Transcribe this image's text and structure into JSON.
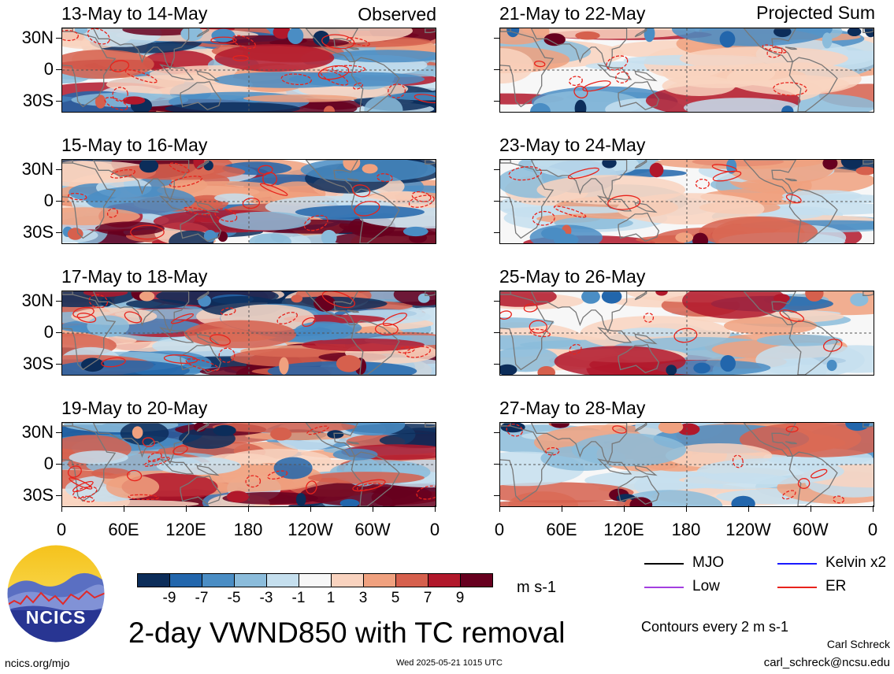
{
  "header": {
    "observed": "Observed",
    "projected": "Projected Sum"
  },
  "panels": [
    {
      "title": "13-May to 14-May",
      "seed": 1,
      "kind": "observed"
    },
    {
      "title": "15-May to 16-May",
      "seed": 2,
      "kind": "observed"
    },
    {
      "title": "17-May to 18-May",
      "seed": 3,
      "kind": "observed"
    },
    {
      "title": "19-May to 20-May",
      "seed": 4,
      "kind": "observed"
    },
    {
      "title": "21-May to 22-May",
      "seed": 5,
      "kind": "projected"
    },
    {
      "title": "23-May to 24-May",
      "seed": 6,
      "kind": "projected"
    },
    {
      "title": "25-May to 26-May",
      "seed": 7,
      "kind": "projected"
    },
    {
      "title": "27-May to 28-May",
      "seed": 8,
      "kind": "projected"
    }
  ],
  "axes": {
    "lat_labels": [
      "30N",
      "0",
      "30S"
    ],
    "lon_labels": [
      "0",
      "60E",
      "120E",
      "180",
      "120W",
      "60W",
      "0"
    ]
  },
  "colorbar": {
    "labels": [
      "-9",
      "-7",
      "-5",
      "-3",
      "-1",
      "1",
      "3",
      "5",
      "7",
      "9"
    ],
    "colors": [
      "#0c2d5a",
      "#2266ac",
      "#4a8dc4",
      "#8bbcdb",
      "#c5dfee",
      "#f7f7f7",
      "#f9d3bf",
      "#f0a17f",
      "#d6604d",
      "#b1182b",
      "#67001f"
    ],
    "units": "m s-1"
  },
  "legend": {
    "items": [
      {
        "label": "MJO",
        "color": "#000000"
      },
      {
        "label": "Kelvin x2",
        "color": "#1a1aff"
      },
      {
        "label": "Low",
        "color": "#a33fe0"
      },
      {
        "label": "ER",
        "color": "#e8231c"
      }
    ],
    "contours": "Contours every 2 m s-1"
  },
  "footer": {
    "main_title": "2-day VWND850 with TC removal",
    "logo_text": "NCICS",
    "site": "ncics.org/mjo",
    "timestamp": "Wed 2025-05-21 1015 UTC",
    "author": "Carl Schreck",
    "email": "carl_schreck@ncsu.edu"
  }
}
